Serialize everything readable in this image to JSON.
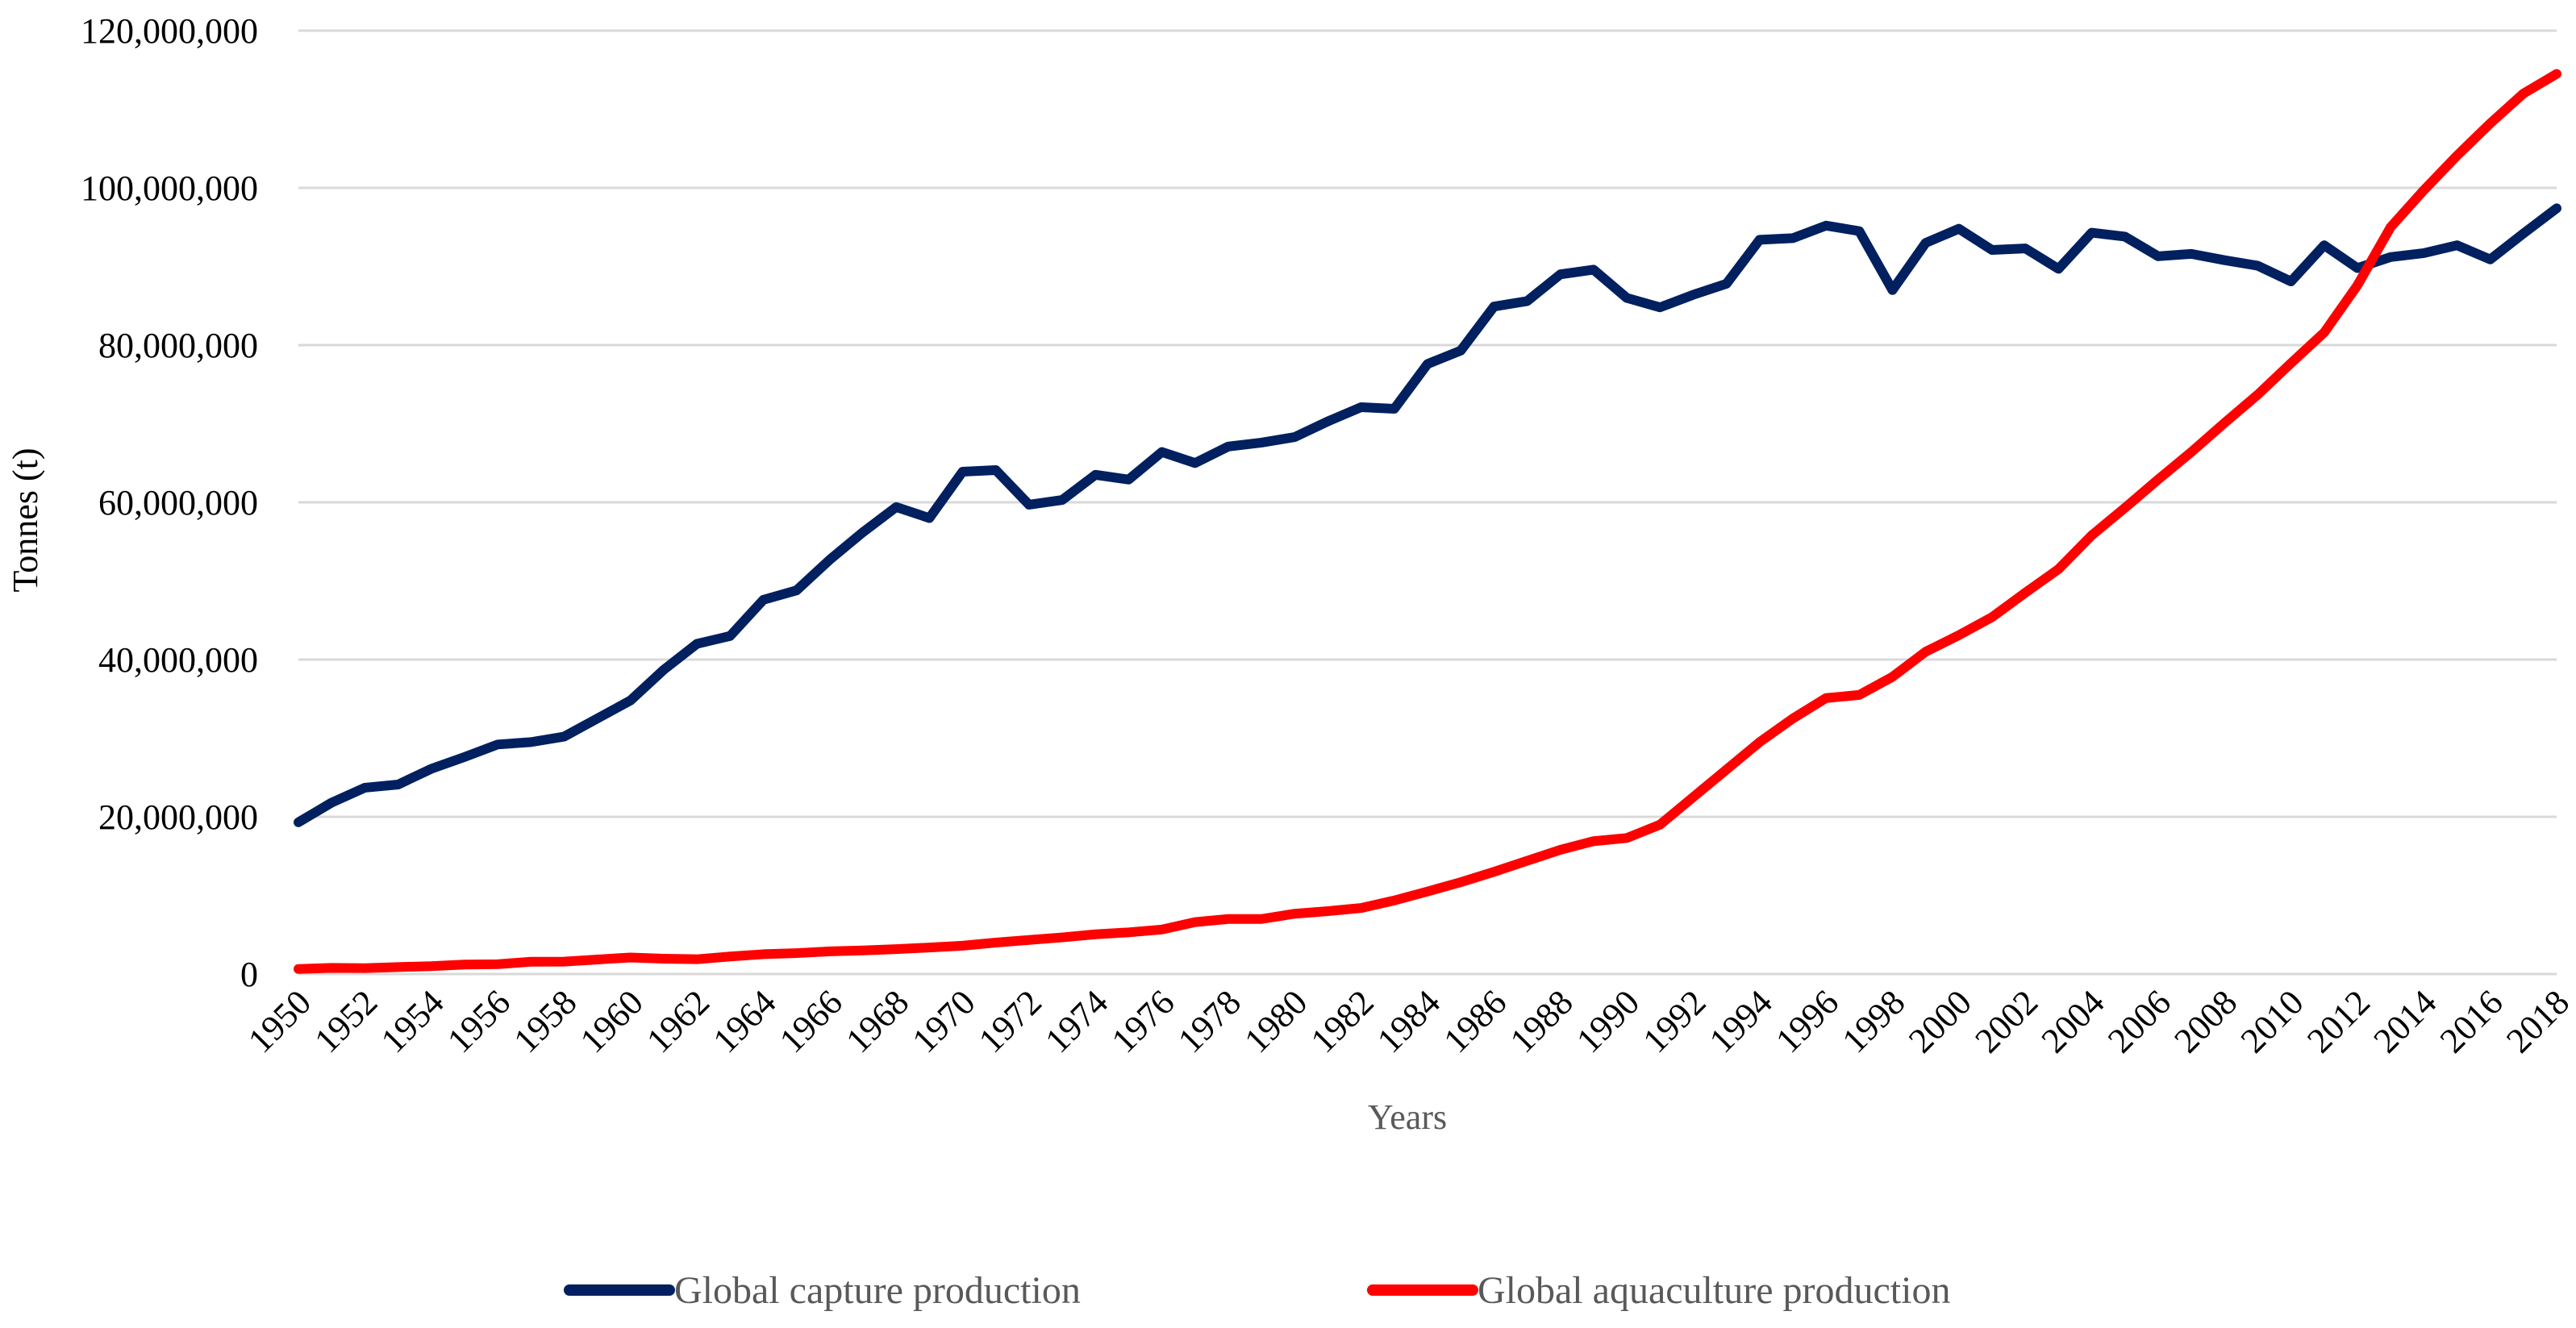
{
  "chart_data": {
    "type": "line",
    "title": "",
    "xlabel": "Years",
    "ylabel": "Tonnes (t)",
    "ylim": [
      0,
      120000000
    ],
    "yticks": [
      0,
      20000000,
      40000000,
      60000000,
      80000000,
      100000000,
      120000000
    ],
    "ytick_labels": [
      "0",
      "20,000,000",
      "40,000,000",
      "60,000,000",
      "80,000,000",
      "100,000,000",
      "120,000,000"
    ],
    "xlim": [
      1950,
      2018
    ],
    "xtick_labels": [
      "1950",
      "1952",
      "1954",
      "1956",
      "1958",
      "1960",
      "1962",
      "1964",
      "1966",
      "1968",
      "1970",
      "1972",
      "1974",
      "1976",
      "1978",
      "1980",
      "1982",
      "1984",
      "1986",
      "1988",
      "1990",
      "1992",
      "1994",
      "1996",
      "1998",
      "2000",
      "2002",
      "2004",
      "2006",
      "2008",
      "2010",
      "2012",
      "2014",
      "2016",
      "2018"
    ],
    "grid": true,
    "legend_position": "bottom",
    "x": [
      1950,
      1951,
      1952,
      1953,
      1954,
      1955,
      1956,
      1957,
      1958,
      1959,
      1960,
      1961,
      1962,
      1963,
      1964,
      1965,
      1966,
      1967,
      1968,
      1969,
      1970,
      1971,
      1972,
      1973,
      1974,
      1975,
      1976,
      1977,
      1978,
      1979,
      1980,
      1981,
      1982,
      1983,
      1984,
      1985,
      1986,
      1987,
      1988,
      1989,
      1990,
      1991,
      1992,
      1993,
      1994,
      1995,
      1996,
      1997,
      1998,
      1999,
      2000,
      2001,
      2002,
      2003,
      2004,
      2005,
      2006,
      2007,
      2008,
      2009,
      2010,
      2011,
      2012,
      2013,
      2014,
      2015,
      2016,
      2017,
      2018
    ],
    "series": [
      {
        "name": "Global capture production",
        "color": "#002060",
        "values": [
          19300000,
          21800000,
          23700000,
          24100000,
          26100000,
          27600000,
          29200000,
          29500000,
          30200000,
          32500000,
          34800000,
          38700000,
          42000000,
          43000000,
          47600000,
          48800000,
          52700000,
          56200000,
          59400000,
          58000000,
          63900000,
          64100000,
          59700000,
          60300000,
          63500000,
          62900000,
          66400000,
          65000000,
          67100000,
          67600000,
          68300000,
          70300000,
          72100000,
          71900000,
          77600000,
          79300000,
          84900000,
          85600000,
          89000000,
          89600000,
          86000000,
          84800000,
          86400000,
          87800000,
          93400000,
          93600000,
          95200000,
          94500000,
          87000000,
          93000000,
          94800000,
          92100000,
          92300000,
          89700000,
          94300000,
          93800000,
          91300000,
          91600000,
          90800000,
          90100000,
          88100000,
          92700000,
          89800000,
          91200000,
          91700000,
          92700000,
          90900000,
          94200000,
          97400000
        ]
      },
      {
        "name": "Global aquaculture production",
        "color": "#ff0000",
        "values": [
          640000,
          780000,
          750000,
          890000,
          1000000,
          1210000,
          1250000,
          1560000,
          1580000,
          1850000,
          2100000,
          1950000,
          1880000,
          2230000,
          2520000,
          2660000,
          2880000,
          3000000,
          3170000,
          3370000,
          3600000,
          4000000,
          4330000,
          4660000,
          5050000,
          5300000,
          5660000,
          6600000,
          7000000,
          7000000,
          7670000,
          8000000,
          8400000,
          9360000,
          10500000,
          11680000,
          13000000,
          14400000,
          15800000,
          16900000,
          17300000,
          19000000,
          22500000,
          26000000,
          29500000,
          32500000,
          35100000,
          35500000,
          37800000,
          41000000,
          43100000,
          45400000,
          48500000,
          51500000,
          55800000,
          59300000,
          62900000,
          66400000,
          70100000,
          73700000,
          77700000,
          81600000,
          87600000,
          95000000,
          99700000,
          104100000,
          108200000,
          112000000,
          114500000
        ]
      }
    ]
  }
}
